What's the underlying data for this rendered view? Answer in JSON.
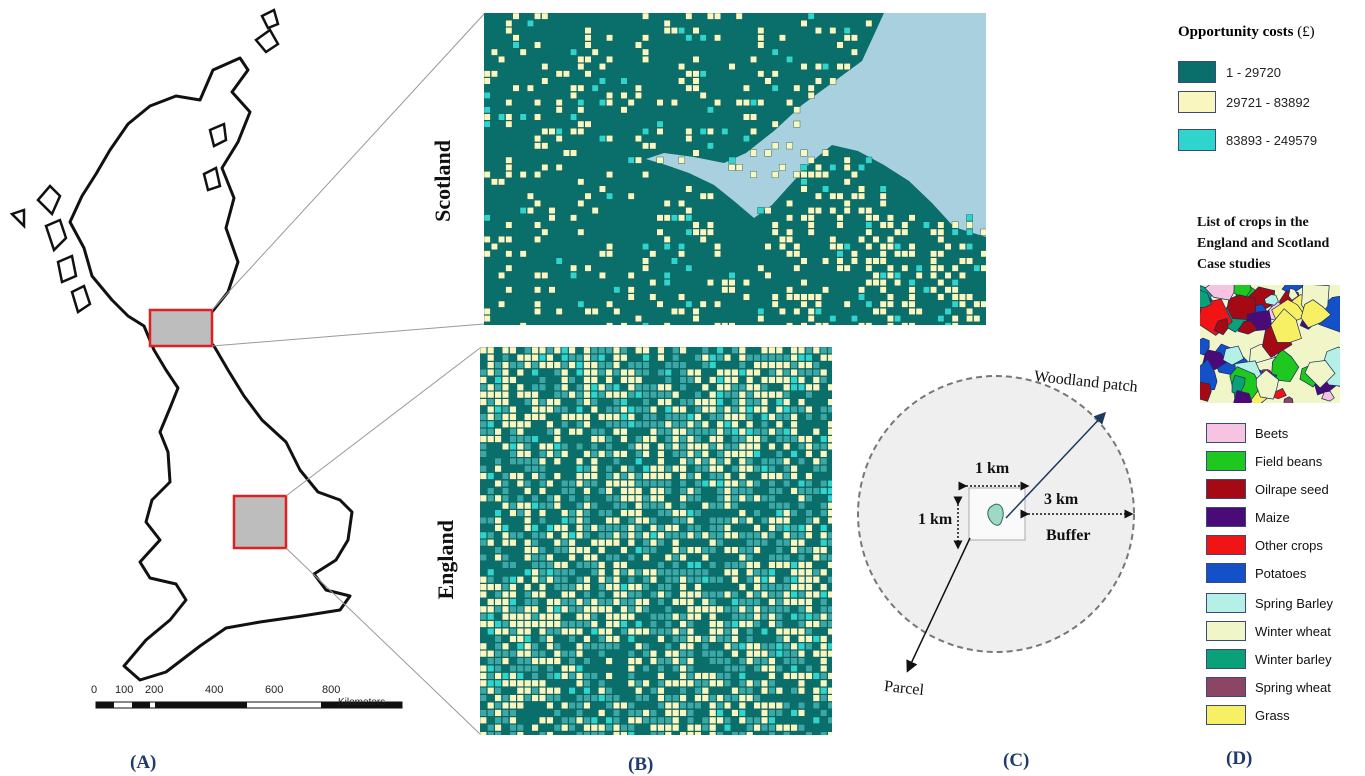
{
  "panel_labels": {
    "a": "(A)",
    "b": "(B)",
    "c": "(C)",
    "d": "(D)"
  },
  "scale_bar": {
    "ticks": [
      "0",
      "100",
      "200",
      "400",
      "600",
      "800"
    ],
    "unit": "Kilometers"
  },
  "map_titles": {
    "scotland": "Scotland",
    "england": "England"
  },
  "opportunity_costs": {
    "title": "Opportunity costs",
    "unit": "(£)",
    "classes": [
      {
        "label": "1 - 29720",
        "color": "#0a6e6a"
      },
      {
        "label": "29721 - 83892",
        "color": "#faf6bf"
      },
      {
        "label": "83893 - 249579",
        "color": "#2fd4cc"
      }
    ]
  },
  "diagram": {
    "woodland_label": "Woodland patch",
    "parcel_label": "Parcel",
    "width_label": "1 km",
    "height_label": "1 km",
    "buffer_distance": "3 km",
    "buffer_label": "Buffer"
  },
  "crops": {
    "title_lines": [
      "List of crops in the",
      "England and Scotland",
      "Case studies"
    ],
    "items": [
      {
        "label": "Beets",
        "color": "#f6c3e0"
      },
      {
        "label": "Field beans",
        "color": "#1ec81e"
      },
      {
        "label": "Oilrape seed",
        "color": "#a50a14"
      },
      {
        "label": "Maize",
        "color": "#4a0a78"
      },
      {
        "label": "Other crops",
        "color": "#f01414"
      },
      {
        "label": "Potatoes",
        "color": "#1450c8"
      },
      {
        "label": "Spring Barley",
        "color": "#b4f0e6"
      },
      {
        "label": "Winter wheat",
        "color": "#f0f6c8"
      },
      {
        "label": "Winter barley",
        "color": "#0aa078"
      },
      {
        "label": "Spring wheat",
        "color": "#8c4664"
      },
      {
        "label": "Grass",
        "color": "#f8f064"
      }
    ]
  }
}
